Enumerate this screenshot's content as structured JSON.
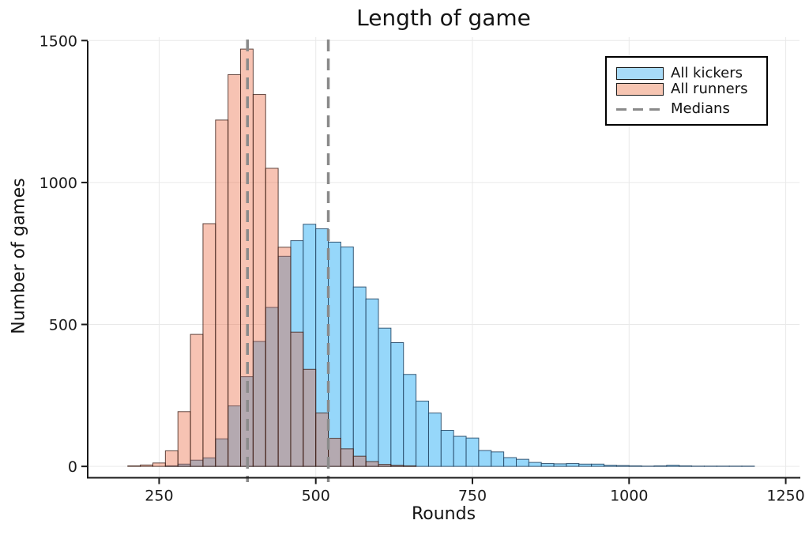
{
  "title": "Length of game",
  "axes": {
    "xlabel": "Rounds",
    "ylabel": "Number of games"
  },
  "legend": {
    "position": "top-right",
    "items": [
      {
        "id": "kickers",
        "label": "All kickers",
        "swatch": "box",
        "swatch_fill": "#a8dbf8",
        "swatch_border": "#1a1a1a"
      },
      {
        "id": "runners",
        "label": "All runners",
        "swatch": "box",
        "swatch_fill": "#f6c5b2",
        "swatch_border": "#1a1a1a"
      },
      {
        "id": "medians",
        "label": "Medians",
        "swatch": "dashed-line",
        "swatch_fill": "#8a8a8a"
      }
    ]
  },
  "chart_data": {
    "type": "bar",
    "subtype": "overlaid-histogram",
    "title": "Length of game",
    "xlabel": "Rounds",
    "ylabel": "Number of games",
    "bin_width": 20,
    "x_ticks": [
      250,
      500,
      750,
      1000,
      1250
    ],
    "y_ticks": [
      0,
      500,
      1000,
      1500
    ],
    "xlim": [
      136,
      1272
    ],
    "ylim": [
      -40,
      1512
    ],
    "grid": true,
    "series": [
      {
        "id": "kickers",
        "name": "All kickers",
        "fill": "#96d7fa",
        "stroke": "rgba(30,65,95,0.85)",
        "bin_start": [
          260,
          280,
          300,
          320,
          340,
          360,
          380,
          400,
          420,
          440,
          460,
          480,
          500,
          520,
          540,
          560,
          580,
          600,
          620,
          640,
          660,
          680,
          700,
          720,
          740,
          760,
          780,
          800,
          820,
          840,
          860,
          880,
          900,
          920,
          940,
          960,
          980,
          1000,
          1020,
          1040,
          1060,
          1080,
          1100,
          1120,
          1140,
          1160,
          1180
        ],
        "counts": [
          2,
          8,
          22,
          30,
          97,
          213,
          316,
          440,
          560,
          740,
          795,
          853,
          837,
          790,
          773,
          632,
          590,
          487,
          436,
          324,
          230,
          188,
          127,
          106,
          100,
          56,
          51,
          31,
          25,
          14,
          10,
          9,
          10,
          8,
          8,
          4,
          3,
          2,
          1,
          2,
          4,
          2,
          1,
          1,
          1,
          1,
          1
        ]
      },
      {
        "id": "runners",
        "name": "All runners",
        "fill": "rgba(232,89,44,0.36)",
        "stroke": "rgba(58,30,22,0.8)",
        "bin_start": [
          200,
          220,
          240,
          260,
          280,
          300,
          320,
          340,
          360,
          380,
          400,
          420,
          440,
          460,
          480,
          500,
          520,
          540,
          560,
          580,
          600,
          620,
          640
        ],
        "counts": [
          2,
          5,
          12,
          55,
          193,
          465,
          855,
          1220,
          1380,
          1470,
          1310,
          1050,
          772,
          473,
          342,
          188,
          99,
          62,
          36,
          17,
          7,
          4,
          2
        ]
      }
    ],
    "medians": [
      {
        "id": "runners",
        "name": "All runners",
        "value": 391
      },
      {
        "id": "kickers",
        "name": "All kickers",
        "value": 520
      }
    ],
    "style": {
      "grid_color": "#e9e9e9",
      "median_color": "#8a8a8a",
      "axis_color": "#1a1a1a",
      "background": "#ffffff"
    }
  }
}
